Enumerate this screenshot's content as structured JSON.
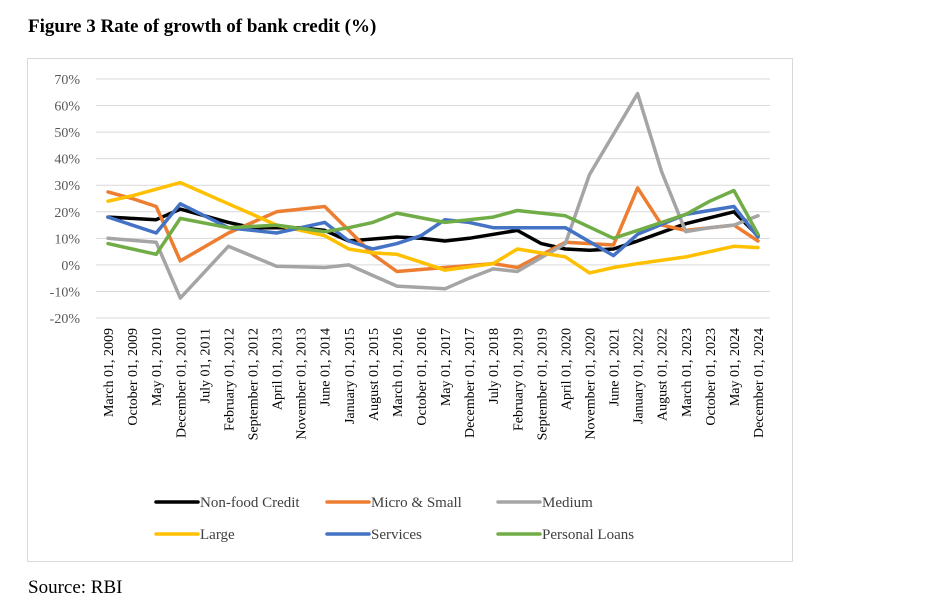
{
  "figure": {
    "title": "Figure 3 Rate of growth of bank credit (%)",
    "source": "Source: RBI"
  },
  "chart_data": {
    "type": "line",
    "title": "Figure 3 Rate of growth of bank credit (%)",
    "xlabel": "",
    "ylabel": "",
    "ylim": [
      -20,
      70
    ],
    "yticks": [
      -20,
      -10,
      0,
      10,
      20,
      30,
      40,
      50,
      60,
      70
    ],
    "ytick_labels": [
      "-20%",
      "-10%",
      "0%",
      "10%",
      "20%",
      "30%",
      "40%",
      "50%",
      "60%",
      "70%"
    ],
    "grid": true,
    "legend_position": "bottom",
    "categories": [
      "March 01, 2009",
      "October 01, 2009",
      "May 01, 2010",
      "December 01, 2010",
      "July 01, 2011",
      "February 01, 2012",
      "September 01, 2012",
      "April 01, 2013",
      "November 01, 2013",
      "June 01, 2014",
      "January 01, 2015",
      "August 01, 2015",
      "March 01, 2016",
      "October 01, 2016",
      "May 01, 2017",
      "December 01, 2017",
      "July 01, 2018",
      "February 01, 2019",
      "September 01, 2019",
      "April 01, 2020",
      "November 01, 2020",
      "June 01, 2021",
      "January 01, 2022",
      "August 01, 2022",
      "March 01, 2023",
      "October 01, 2023",
      "May 01, 2024",
      "December 01, 2024"
    ],
    "series": [
      {
        "name": "Non-food Credit",
        "color": "#000000",
        "points": [
          [
            0,
            18
          ],
          [
            2,
            17
          ],
          [
            3,
            21
          ],
          [
            5,
            16
          ],
          [
            6,
            14
          ],
          [
            7,
            14
          ],
          [
            8,
            14
          ],
          [
            9,
            13
          ],
          [
            10,
            9
          ],
          [
            12,
            10.5
          ],
          [
            13,
            10
          ],
          [
            14,
            9
          ],
          [
            15,
            10
          ],
          [
            17,
            13
          ],
          [
            18,
            8
          ],
          [
            19,
            6
          ],
          [
            20,
            5.5
          ],
          [
            21,
            6
          ],
          [
            22,
            9
          ],
          [
            24,
            15.5
          ],
          [
            26,
            20
          ],
          [
            27,
            11
          ]
        ]
      },
      {
        "name": "Micro & Small",
        "color": "#ED7D31",
        "points": [
          [
            0,
            27.5
          ],
          [
            1,
            25
          ],
          [
            2,
            22
          ],
          [
            3,
            1.5
          ],
          [
            5,
            12
          ],
          [
            7,
            20
          ],
          [
            9,
            22
          ],
          [
            10,
            13
          ],
          [
            11,
            4
          ],
          [
            12,
            -2.5
          ],
          [
            14,
            -1
          ],
          [
            16,
            0.5
          ],
          [
            17,
            -1
          ],
          [
            19,
            8.5
          ],
          [
            21,
            7.5
          ],
          [
            22,
            29
          ],
          [
            23,
            15
          ],
          [
            24,
            13
          ],
          [
            26,
            15
          ],
          [
            27,
            9
          ]
        ]
      },
      {
        "name": "Medium",
        "color": "#A5A5A5",
        "points": [
          [
            0,
            10
          ],
          [
            2,
            8.5
          ],
          [
            3,
            -12.5
          ],
          [
            5,
            7
          ],
          [
            7,
            -0.5
          ],
          [
            9,
            -1
          ],
          [
            10,
            0
          ],
          [
            12,
            -8
          ],
          [
            14,
            -9
          ],
          [
            15,
            -5
          ],
          [
            16,
            -1.5
          ],
          [
            17,
            -2.5
          ],
          [
            19,
            8
          ],
          [
            20,
            34
          ],
          [
            22,
            64.5
          ],
          [
            23,
            35
          ],
          [
            24,
            12.5
          ],
          [
            25,
            14
          ],
          [
            26,
            15
          ],
          [
            27,
            18.5
          ]
        ]
      },
      {
        "name": "Large",
        "color": "#FFC000",
        "points": [
          [
            0,
            24
          ],
          [
            1,
            26
          ],
          [
            3,
            31
          ],
          [
            5,
            23
          ],
          [
            6,
            19
          ],
          [
            7,
            15
          ],
          [
            9,
            11
          ],
          [
            10,
            6
          ],
          [
            11,
            4.5
          ],
          [
            12,
            4
          ],
          [
            13,
            1
          ],
          [
            14,
            -2
          ],
          [
            16,
            0.5
          ],
          [
            17,
            6
          ],
          [
            19,
            3
          ],
          [
            20,
            -3
          ],
          [
            21,
            -1
          ],
          [
            22,
            0.5
          ],
          [
            24,
            3
          ],
          [
            26,
            7
          ],
          [
            27,
            6.5
          ]
        ]
      },
      {
        "name": "Services",
        "color": "#4472C4",
        "points": [
          [
            0,
            18
          ],
          [
            2,
            12
          ],
          [
            3,
            23
          ],
          [
            5,
            14
          ],
          [
            7,
            12
          ],
          [
            9,
            16
          ],
          [
            10,
            9
          ],
          [
            11,
            6
          ],
          [
            12,
            8
          ],
          [
            13,
            11
          ],
          [
            14,
            17
          ],
          [
            15,
            16
          ],
          [
            16,
            14
          ],
          [
            18,
            14
          ],
          [
            19,
            14
          ],
          [
            21,
            3.5
          ],
          [
            22,
            11.5
          ],
          [
            24,
            19
          ],
          [
            26,
            22
          ],
          [
            27,
            10.5
          ]
        ]
      },
      {
        "name": "Personal Loans",
        "color": "#70AD47",
        "points": [
          [
            0,
            8
          ],
          [
            2,
            4
          ],
          [
            3,
            17.5
          ],
          [
            5,
            14
          ],
          [
            7,
            15
          ],
          [
            9,
            12.5
          ],
          [
            10,
            14
          ],
          [
            11,
            16
          ],
          [
            12,
            19.5
          ],
          [
            14,
            16
          ],
          [
            15,
            17
          ],
          [
            16,
            18
          ],
          [
            17,
            20.5
          ],
          [
            18,
            19.5
          ],
          [
            19,
            18.5
          ],
          [
            21,
            10
          ],
          [
            22,
            13
          ],
          [
            24,
            19
          ],
          [
            25,
            24
          ],
          [
            26,
            28
          ],
          [
            27,
            11.5
          ]
        ]
      }
    ]
  }
}
